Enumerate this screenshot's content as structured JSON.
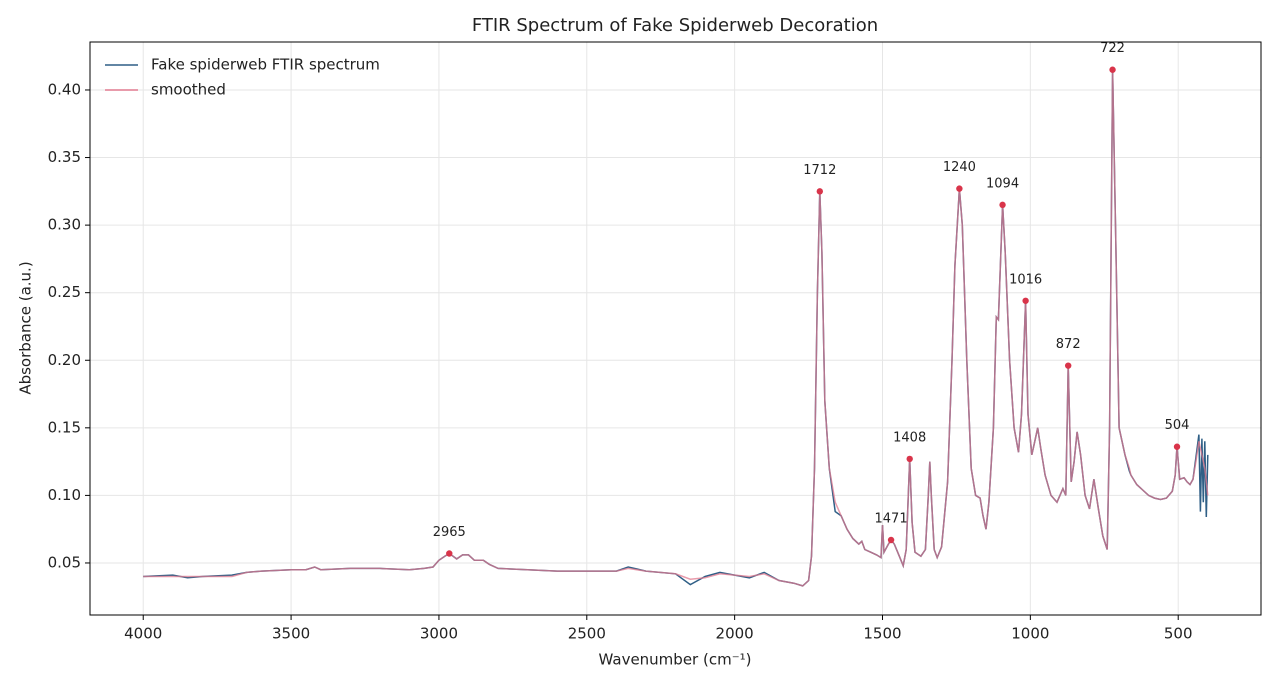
{
  "chart_data": {
    "type": "line",
    "title": "FTIR Spectrum of Fake Spiderweb Decoration",
    "xlabel": "Wavenumber (cm⁻¹)",
    "ylabel": "Absorbance (a.u.)",
    "xlim": [
      4180,
      220
    ],
    "xticks": [
      4000,
      3500,
      3000,
      2500,
      2000,
      1500,
      1000,
      500
    ],
    "ylim": [
      0.0115,
      0.4355
    ],
    "yticks": [
      0.05,
      {
        "value": 0.1,
        "label": "0.10"
      },
      0.15,
      {
        "value": 0.2,
        "label": "0.20"
      },
      0.25,
      {
        "value": 0.3,
        "label": "0.30"
      },
      0.35,
      {
        "value": 0.4,
        "label": "0.40"
      }
    ],
    "grid": true,
    "legend": "upper left",
    "series": [
      {
        "name": "Fake spiderweb FTIR spectrum",
        "color": "#2f5f86",
        "x": [
          4000,
          3900,
          3850,
          3800,
          3700,
          3650,
          3600,
          3500,
          3450,
          3420,
          3400,
          3300,
          3200,
          3100,
          3050,
          3020,
          3000,
          2980,
          2965,
          2940,
          2920,
          2900,
          2880,
          2850,
          2830,
          2800,
          2700,
          2600,
          2500,
          2400,
          2360,
          2300,
          2200,
          2150,
          2100,
          2050,
          2000,
          1950,
          1900,
          1850,
          1800,
          1770,
          1750,
          1740,
          1730,
          1720,
          1712,
          1705,
          1695,
          1680,
          1660,
          1640,
          1620,
          1600,
          1580,
          1570,
          1560,
          1540,
          1520,
          1505,
          1500,
          1495,
          1480,
          1471,
          1460,
          1445,
          1430,
          1420,
          1408,
          1400,
          1390,
          1370,
          1355,
          1345,
          1340,
          1335,
          1325,
          1315,
          1300,
          1280,
          1265,
          1255,
          1240,
          1230,
          1215,
          1200,
          1185,
          1170,
          1160,
          1150,
          1140,
          1125,
          1115,
          1108,
          1094,
          1085,
          1070,
          1055,
          1040,
          1030,
          1016,
          1008,
          995,
          985,
          975,
          965,
          950,
          930,
          910,
          890,
          880,
          872,
          862,
          852,
          842,
          830,
          815,
          800,
          785,
          770,
          755,
          740,
          732,
          722,
          712,
          700,
          680,
          665,
          660,
          640,
          620,
          600,
          580,
          560,
          540,
          520,
          510,
          504,
          495,
          480,
          470,
          460,
          450,
          440,
          430,
          425,
          420,
          415,
          410,
          405,
          400
        ],
        "values": [
          0.04,
          0.041,
          0.039,
          0.04,
          0.041,
          0.043,
          0.044,
          0.045,
          0.045,
          0.047,
          0.045,
          0.046,
          0.046,
          0.045,
          0.046,
          0.047,
          0.052,
          0.055,
          0.057,
          0.053,
          0.056,
          0.056,
          0.052,
          0.052,
          0.049,
          0.046,
          0.045,
          0.044,
          0.044,
          0.044,
          0.047,
          0.044,
          0.042,
          0.034,
          0.04,
          0.043,
          0.041,
          0.039,
          0.043,
          0.037,
          0.035,
          0.033,
          0.037,
          0.055,
          0.12,
          0.25,
          0.325,
          0.28,
          0.17,
          0.12,
          0.088,
          0.085,
          0.075,
          0.068,
          0.064,
          0.066,
          0.06,
          0.058,
          0.056,
          0.054,
          0.078,
          0.058,
          0.064,
          0.067,
          0.064,
          0.056,
          0.048,
          0.06,
          0.127,
          0.08,
          0.058,
          0.055,
          0.06,
          0.1,
          0.125,
          0.1,
          0.06,
          0.054,
          0.062,
          0.11,
          0.2,
          0.27,
          0.327,
          0.3,
          0.2,
          0.12,
          0.1,
          0.098,
          0.085,
          0.075,
          0.095,
          0.15,
          0.232,
          0.23,
          0.315,
          0.28,
          0.2,
          0.15,
          0.132,
          0.16,
          0.244,
          0.16,
          0.13,
          0.14,
          0.15,
          0.135,
          0.115,
          0.1,
          0.095,
          0.105,
          0.1,
          0.196,
          0.11,
          0.125,
          0.147,
          0.13,
          0.1,
          0.09,
          0.112,
          0.09,
          0.07,
          0.06,
          0.15,
          0.415,
          0.3,
          0.15,
          0.13,
          0.118,
          0.115,
          0.108,
          0.104,
          0.1,
          0.098,
          0.097,
          0.098,
          0.103,
          0.115,
          0.136,
          0.112,
          0.113,
          0.11,
          0.108,
          0.112,
          0.128,
          0.145,
          0.088,
          0.142,
          0.095,
          0.14,
          0.084,
          0.13
        ]
      },
      {
        "name": "smoothed",
        "color": "#e07a8f",
        "x": [
          4000,
          3900,
          3800,
          3700,
          3650,
          3600,
          3500,
          3450,
          3420,
          3400,
          3300,
          3200,
          3100,
          3050,
          3020,
          3000,
          2980,
          2965,
          2940,
          2920,
          2900,
          2880,
          2850,
          2830,
          2800,
          2700,
          2600,
          2500,
          2400,
          2360,
          2300,
          2200,
          2150,
          2100,
          2050,
          2000,
          1950,
          1900,
          1850,
          1800,
          1770,
          1750,
          1740,
          1730,
          1720,
          1712,
          1705,
          1695,
          1680,
          1660,
          1640,
          1620,
          1600,
          1580,
          1570,
          1560,
          1540,
          1520,
          1505,
          1500,
          1495,
          1480,
          1471,
          1460,
          1445,
          1430,
          1420,
          1408,
          1400,
          1390,
          1370,
          1355,
          1345,
          1340,
          1335,
          1325,
          1315,
          1300,
          1280,
          1265,
          1255,
          1240,
          1230,
          1215,
          1200,
          1185,
          1170,
          1160,
          1150,
          1140,
          1125,
          1115,
          1108,
          1094,
          1085,
          1070,
          1055,
          1040,
          1030,
          1016,
          1008,
          995,
          985,
          975,
          965,
          950,
          930,
          910,
          890,
          880,
          872,
          862,
          852,
          842,
          830,
          815,
          800,
          785,
          770,
          755,
          740,
          732,
          722,
          712,
          700,
          680,
          665,
          660,
          640,
          620,
          600,
          580,
          560,
          540,
          520,
          510,
          504,
          495,
          480,
          470,
          460,
          450,
          440,
          430,
          420,
          410,
          400
        ],
        "values": [
          0.04,
          0.04,
          0.04,
          0.04,
          0.043,
          0.044,
          0.045,
          0.045,
          0.047,
          0.045,
          0.046,
          0.046,
          0.045,
          0.046,
          0.047,
          0.052,
          0.055,
          0.057,
          0.053,
          0.056,
          0.056,
          0.052,
          0.052,
          0.049,
          0.046,
          0.045,
          0.044,
          0.044,
          0.044,
          0.046,
          0.044,
          0.042,
          0.038,
          0.039,
          0.042,
          0.041,
          0.04,
          0.042,
          0.037,
          0.035,
          0.033,
          0.037,
          0.055,
          0.12,
          0.25,
          0.325,
          0.28,
          0.17,
          0.12,
          0.095,
          0.085,
          0.075,
          0.068,
          0.064,
          0.066,
          0.06,
          0.058,
          0.056,
          0.054,
          0.078,
          0.058,
          0.064,
          0.067,
          0.064,
          0.056,
          0.048,
          0.06,
          0.127,
          0.08,
          0.058,
          0.055,
          0.06,
          0.1,
          0.125,
          0.1,
          0.06,
          0.054,
          0.062,
          0.11,
          0.2,
          0.27,
          0.327,
          0.3,
          0.2,
          0.12,
          0.1,
          0.098,
          0.085,
          0.075,
          0.095,
          0.15,
          0.232,
          0.23,
          0.315,
          0.28,
          0.2,
          0.15,
          0.132,
          0.16,
          0.244,
          0.16,
          0.13,
          0.14,
          0.15,
          0.135,
          0.115,
          0.1,
          0.095,
          0.105,
          0.1,
          0.196,
          0.11,
          0.125,
          0.147,
          0.13,
          0.1,
          0.09,
          0.112,
          0.09,
          0.07,
          0.06,
          0.15,
          0.415,
          0.3,
          0.15,
          0.13,
          0.12,
          0.115,
          0.108,
          0.104,
          0.1,
          0.098,
          0.097,
          0.098,
          0.103,
          0.115,
          0.136,
          0.112,
          0.113,
          0.11,
          0.108,
          0.112,
          0.125,
          0.14,
          0.13,
          0.12,
          0.1
        ]
      }
    ],
    "peaks": {
      "color": "#d9344a",
      "x": [
        2965,
        1712,
        1471,
        1408,
        1240,
        1094,
        1016,
        872,
        722,
        504
      ],
      "values": [
        0.057,
        0.325,
        0.067,
        0.127,
        0.327,
        0.315,
        0.244,
        0.196,
        0.415,
        0.136
      ]
    }
  }
}
